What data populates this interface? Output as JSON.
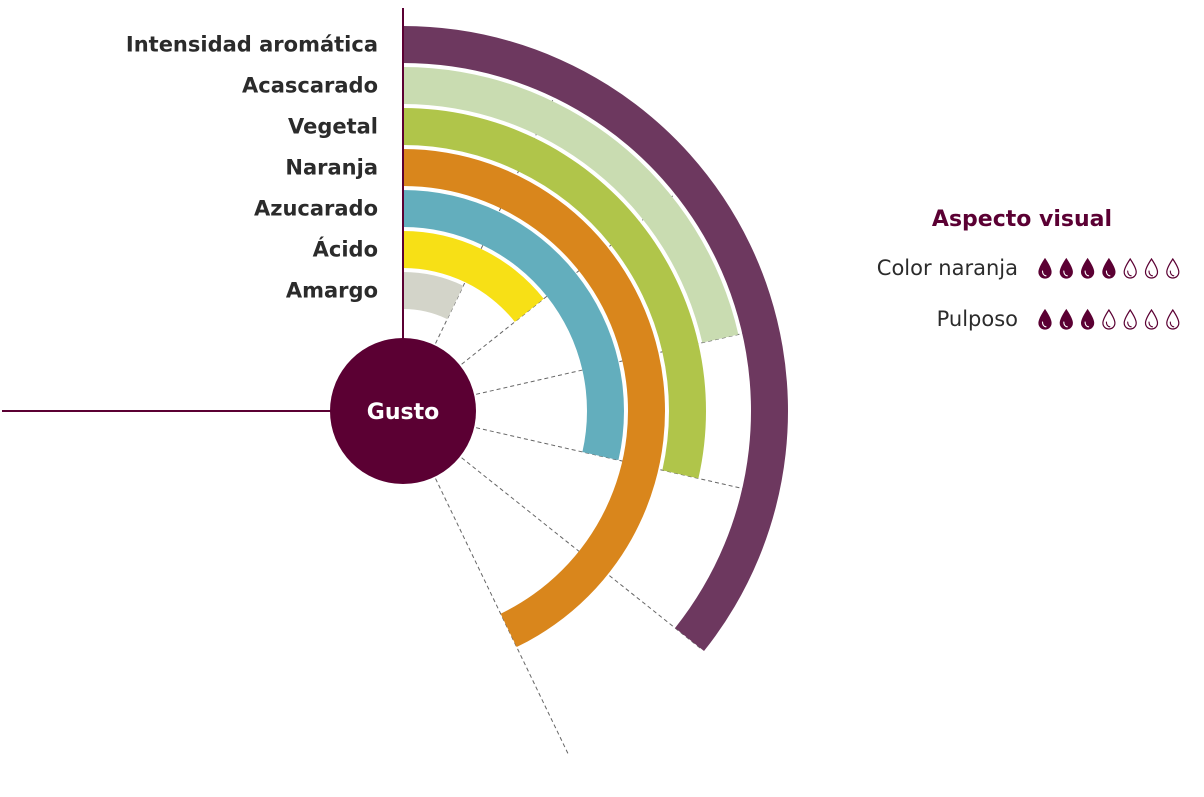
{
  "chart_data": {
    "type": "radial-bar",
    "center_label": "Gusto",
    "scale_max": 7,
    "categories": [
      "Intensidad aromática",
      "Acascarado",
      "Vegetal",
      "Naranja",
      "Azucarado",
      "Ácido",
      "Amargo"
    ],
    "values": [
      5,
      3,
      4,
      6,
      4,
      2,
      1
    ],
    "colors": [
      "#6d385f",
      "#c9dcb1",
      "#b0c54a",
      "#d9861c",
      "#63aebd",
      "#f7e016",
      "#d3d4c9"
    ],
    "axis_color": "#5b0033",
    "guide_line_color": "#666666"
  },
  "aspecto_visual": {
    "title": "Aspecto visual",
    "max": 7,
    "filled_color": "#5b0033",
    "items": [
      {
        "label": "Color naranja",
        "value": 4
      },
      {
        "label": "Pulposo",
        "value": 3
      }
    ]
  }
}
